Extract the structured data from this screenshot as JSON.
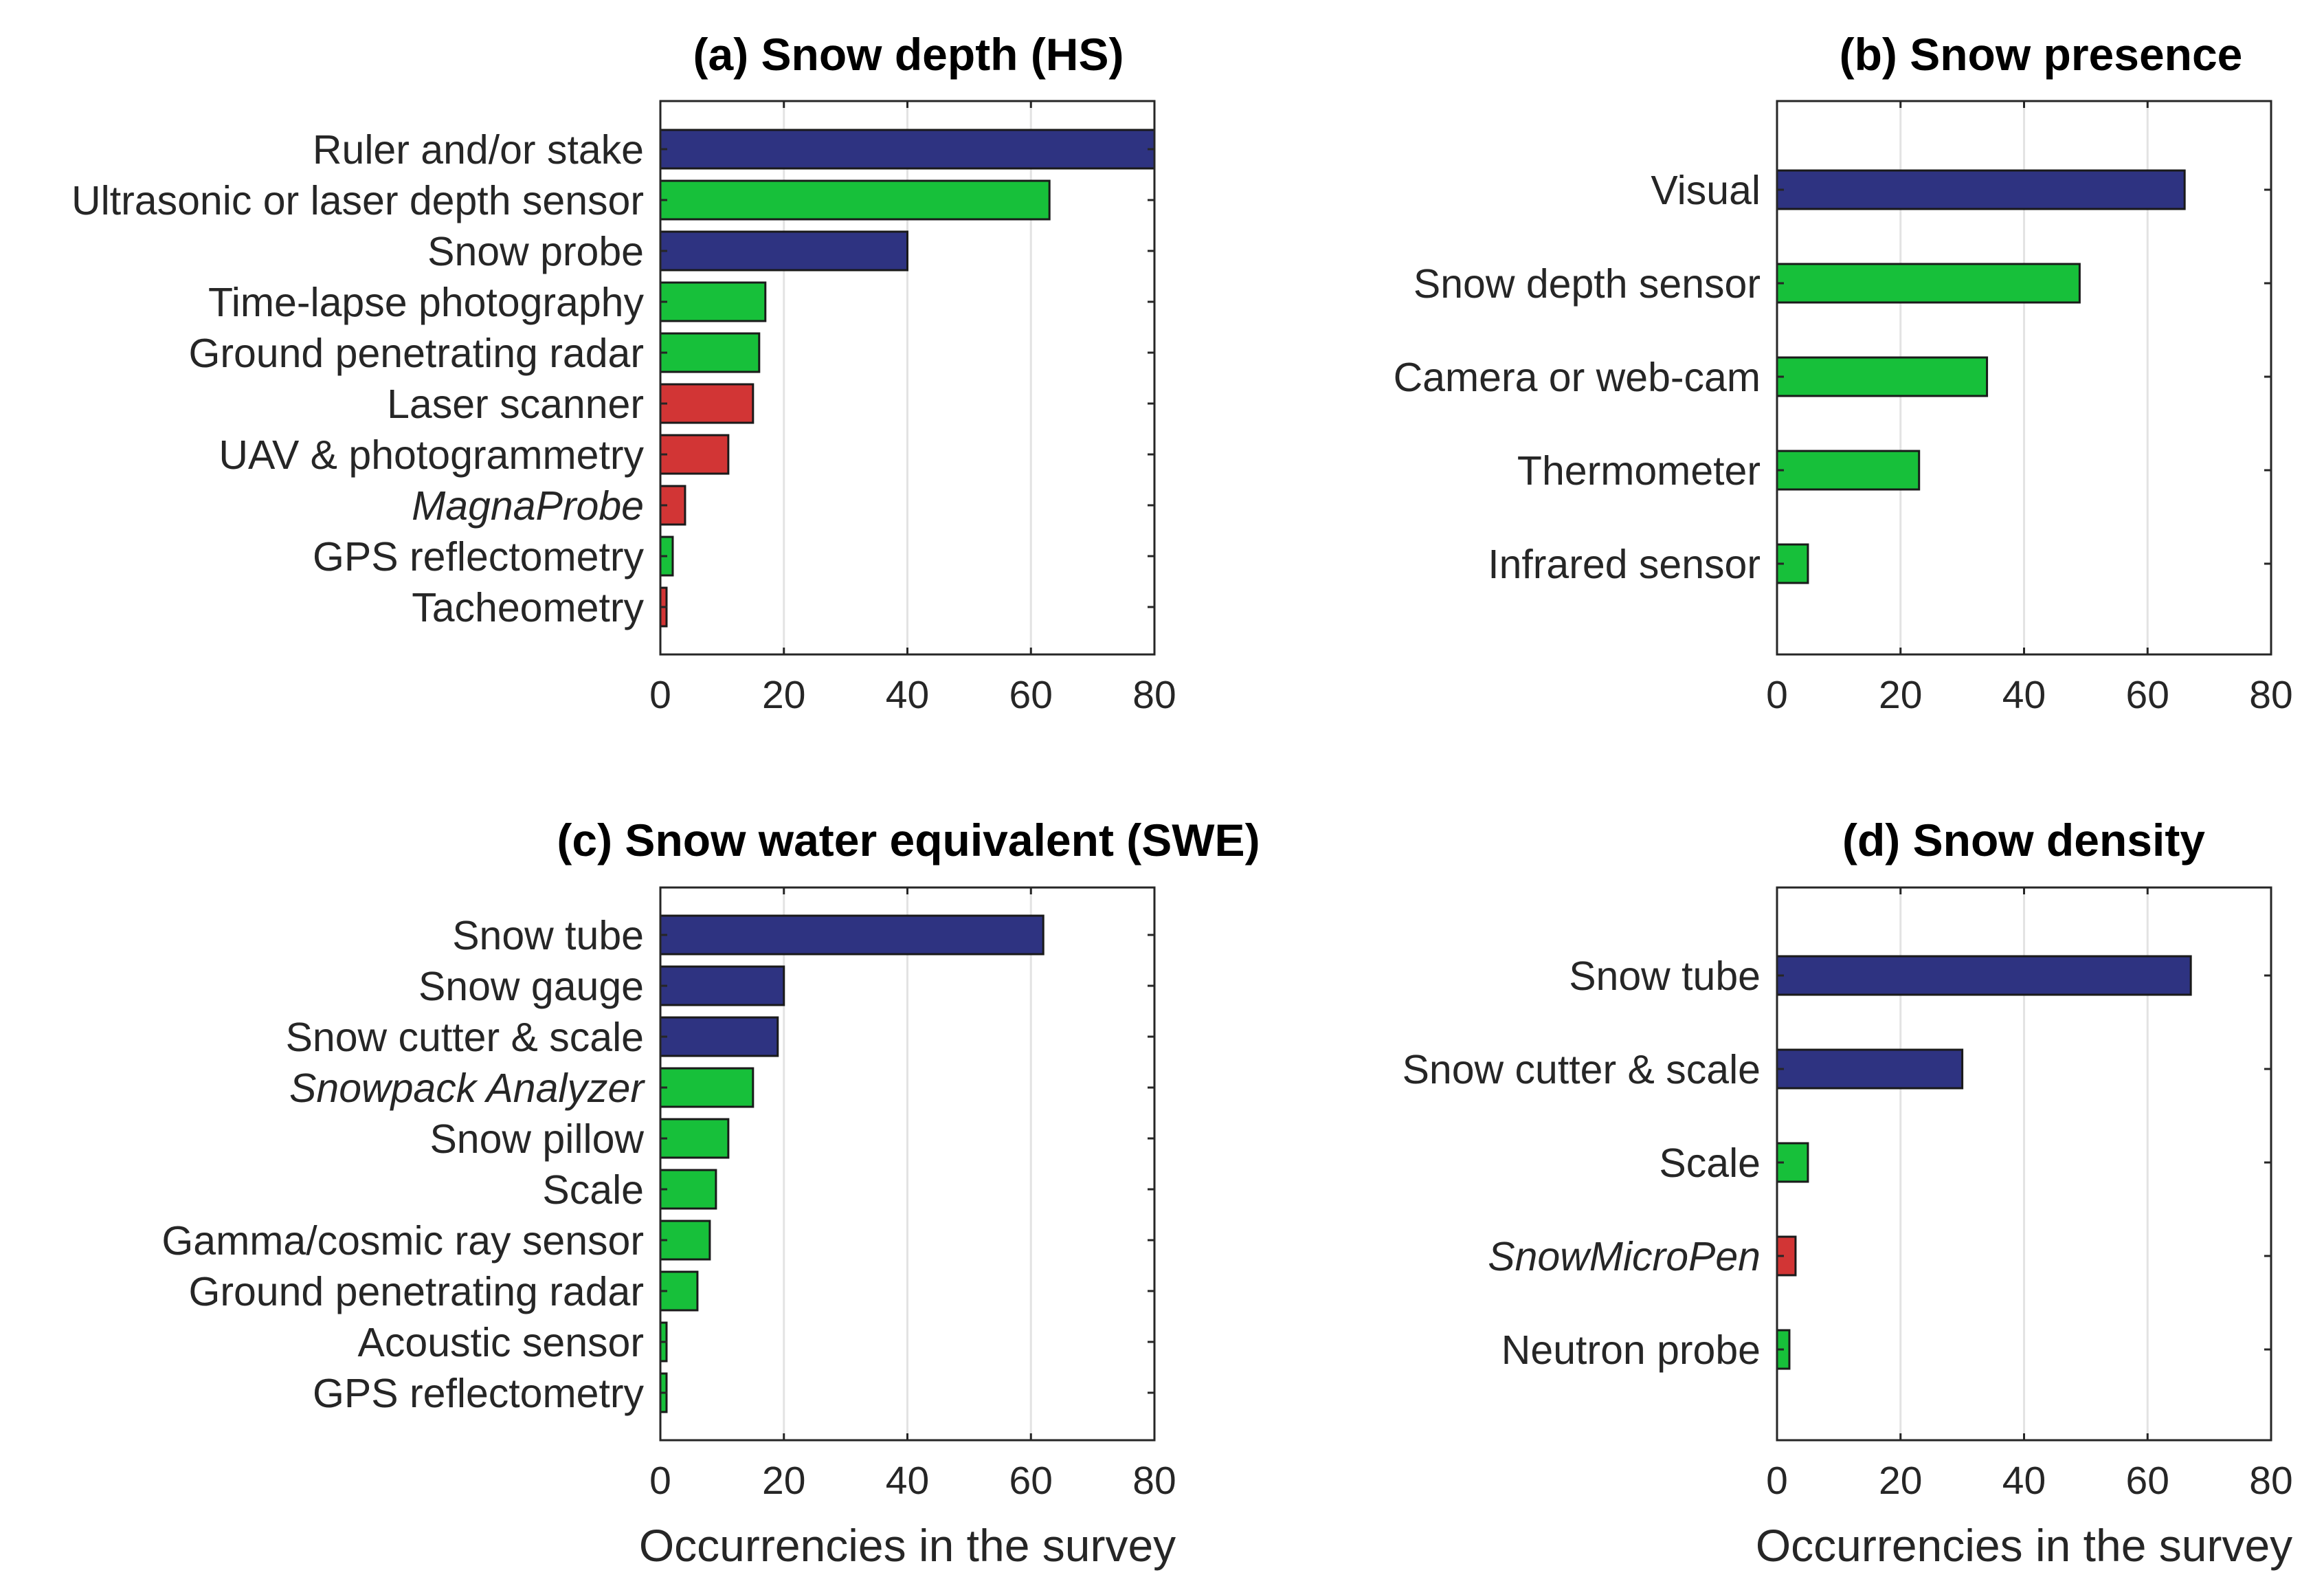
{
  "colors": {
    "blue": "#2e3381",
    "green": "#17c03a",
    "red": "#d23535",
    "highlight": "#17c03a"
  },
  "chart_data": [
    {
      "type": "bar",
      "orientation": "horizontal",
      "title": "(a) Snow depth (HS)",
      "xlabel": "",
      "ylabel": "",
      "xlim": [
        0,
        80
      ],
      "xticks": [
        "0",
        "20",
        "40",
        "60",
        "80"
      ],
      "grid": "x",
      "bars": [
        {
          "label": "Ruler and/or stake",
          "value": 80,
          "color": "blue",
          "italic": false
        },
        {
          "label": "Ultrasonic or laser depth sensor",
          "value": 63,
          "color": "green",
          "italic": false
        },
        {
          "label": "Snow probe",
          "value": 40,
          "color": "blue",
          "italic": false
        },
        {
          "label": "Time-lapse photography",
          "value": 17,
          "color": "green",
          "italic": false
        },
        {
          "label": "Ground penetrating radar",
          "value": 16,
          "color": "green",
          "italic": false
        },
        {
          "label": "Laser scanner",
          "value": 15,
          "color": "red",
          "italic": false
        },
        {
          "label": "UAV & photogrammetry",
          "value": 11,
          "color": "red",
          "italic": false
        },
        {
          "label": "MagnaProbe",
          "value": 4,
          "color": "red",
          "italic": true
        },
        {
          "label": "GPS reflectometry",
          "value": 2,
          "color": "green",
          "italic": false
        },
        {
          "label": "Tacheometry",
          "value": 1,
          "color": "red",
          "italic": false
        }
      ]
    },
    {
      "type": "bar",
      "orientation": "horizontal",
      "title": "(b) Snow presence",
      "xlabel": "",
      "ylabel": "",
      "xlim": [
        0,
        80
      ],
      "xticks": [
        "0",
        "20",
        "40",
        "60",
        "80"
      ],
      "grid": "x",
      "bars": [
        {
          "label": "Visual",
          "value": 66,
          "color": "blue",
          "italic": false
        },
        {
          "label": "Snow depth sensor",
          "value": 49,
          "color": "green",
          "italic": false
        },
        {
          "label": "Camera or web-cam",
          "value": 34,
          "color": "green",
          "italic": false
        },
        {
          "label": "Thermometer",
          "value": 23,
          "color": "green",
          "italic": false
        },
        {
          "label": "Infrared sensor",
          "value": 5,
          "color": "green",
          "italic": false
        }
      ]
    },
    {
      "type": "bar",
      "orientation": "horizontal",
      "title": "(c) Snow water equivalent (SWE)",
      "xlabel": "Occurrencies in the survey",
      "ylabel": "",
      "xlim": [
        0,
        80
      ],
      "xticks": [
        "0",
        "20",
        "40",
        "60",
        "80"
      ],
      "grid": "x",
      "bars": [
        {
          "label": "Snow tube",
          "value": 62,
          "color": "blue",
          "italic": false
        },
        {
          "label": "Snow gauge",
          "value": 20,
          "color": "blue",
          "italic": false,
          "outline": "highlight"
        },
        {
          "label": "Snow cutter & scale",
          "value": 19,
          "color": "blue",
          "italic": false
        },
        {
          "label": "Snowpack Analyzer",
          "value": 15,
          "color": "green",
          "italic": true
        },
        {
          "label": "Snow pillow",
          "value": 11,
          "color": "green",
          "italic": false
        },
        {
          "label": "Scale",
          "value": 9,
          "color": "green",
          "italic": false
        },
        {
          "label": "Gamma/cosmic ray sensor",
          "value": 8,
          "color": "green",
          "italic": false
        },
        {
          "label": "Ground penetrating radar",
          "value": 6,
          "color": "green",
          "italic": false
        },
        {
          "label": "Acoustic sensor",
          "value": 1,
          "color": "green",
          "italic": false
        },
        {
          "label": "GPS reflectometry",
          "value": 1,
          "color": "green",
          "italic": false
        }
      ]
    },
    {
      "type": "bar",
      "orientation": "horizontal",
      "title": "(d) Snow density",
      "xlabel": "Occurrencies in the survey",
      "ylabel": "",
      "xlim": [
        0,
        80
      ],
      "xticks": [
        "0",
        "20",
        "40",
        "60",
        "80"
      ],
      "grid": "x",
      "bars": [
        {
          "label": "Snow tube",
          "value": 67,
          "color": "blue",
          "italic": false
        },
        {
          "label": "Snow cutter & scale",
          "value": 30,
          "color": "blue",
          "italic": false
        },
        {
          "label": "Scale",
          "value": 5,
          "color": "green",
          "italic": false
        },
        {
          "label": "SnowMicroPen",
          "value": 3,
          "color": "red",
          "italic": true
        },
        {
          "label": "Neutron probe",
          "value": 2,
          "color": "green",
          "italic": false
        }
      ]
    }
  ]
}
